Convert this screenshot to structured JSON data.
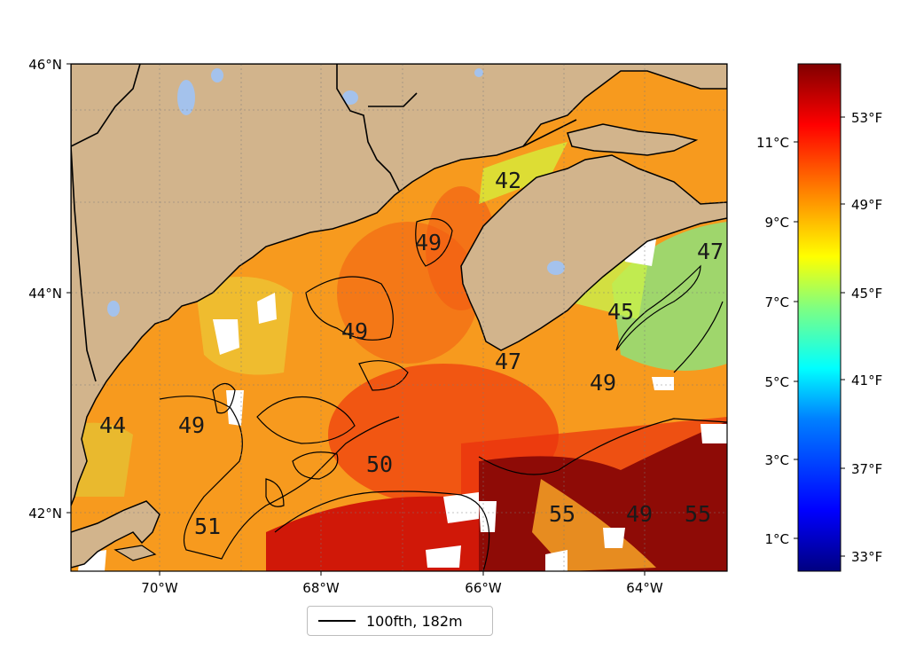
{
  "map": {
    "lat_labels": [
      "46°N",
      "44°N",
      "42°N"
    ],
    "lon_labels": [
      "70°W",
      "68°W",
      "66°W",
      "64°W"
    ],
    "sst_labels": [
      "42",
      "49",
      "49",
      "47",
      "45",
      "47",
      "49",
      "44",
      "49",
      "50",
      "55",
      "49",
      "55",
      "51"
    ],
    "colors": {
      "land": "#d2b48c",
      "water_body": "#a4c2ec",
      "coastline": "#000000",
      "contour": "#000000",
      "cloud_mask": "#ffffff"
    }
  },
  "colorbar": {
    "celsius_labels": [
      "11°C",
      "9°C",
      "7°C",
      "5°C",
      "3°C",
      "1°C"
    ],
    "fahrenheit_labels": [
      "53°F",
      "49°F",
      "45°F",
      "41°F",
      "37°F",
      "33°F"
    ],
    "colormap": [
      "#000080",
      "#0000ff",
      "#0080ff",
      "#00ffff",
      "#80ff80",
      "#ffff00",
      "#ff8000",
      "#ff0000",
      "#800000"
    ]
  },
  "legend": {
    "label": "100fth, 182m"
  }
}
